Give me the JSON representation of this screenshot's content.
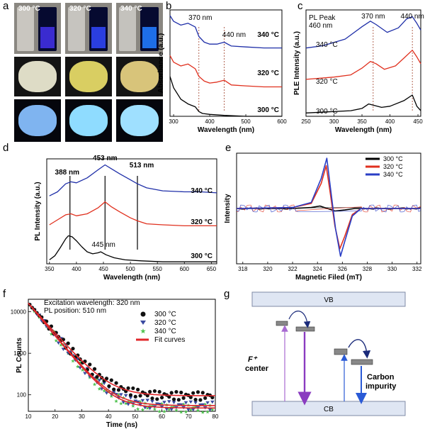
{
  "panel_labels": [
    "a",
    "b",
    "c",
    "d",
    "e",
    "f",
    "g"
  ],
  "photos": {
    "columns": [
      {
        "temp": "300 °C",
        "vial_top": "#c9c6c0",
        "vial_glow": "#3a2bd0",
        "powder_day": "#dedcc6",
        "powder_uv": "#7fb4f0"
      },
      {
        "temp": "320 °C",
        "vial_top": "#c6c4bf",
        "vial_glow": "#2a3ee0",
        "powder_day": "#d9ce62",
        "powder_uv": "#8fdcff"
      },
      {
        "temp": "340 °C",
        "vial_top": "#c4c2bd",
        "vial_glow": "#1e6ee8",
        "powder_day": "#d8c47a",
        "powder_uv": "#9fe0ff"
      }
    ]
  },
  "chart_data": [
    {
      "id": "b",
      "type": "line",
      "xlabel": "Wavelength (nm)",
      "ylabel": "Absorbance (a.u.)",
      "xlim": [
        290,
        600
      ],
      "xticks": [
        300,
        400,
        500,
        600
      ],
      "annotations": [
        "370 nm",
        "440 nm"
      ],
      "marker_x": [
        370,
        440
      ],
      "series": [
        {
          "name": "340 °C",
          "color": "#1f2fa8",
          "x": [
            290,
            300,
            320,
            340,
            360,
            370,
            385,
            400,
            420,
            440,
            460,
            500,
            550,
            600
          ],
          "y": [
            1.06,
            1.0,
            0.96,
            0.98,
            0.94,
            0.84,
            0.78,
            0.76,
            0.76,
            0.78,
            0.74,
            0.73,
            0.72,
            0.72
          ]
        },
        {
          "name": "320 °C",
          "color": "#e0301e",
          "x": [
            290,
            300,
            320,
            340,
            360,
            370,
            385,
            400,
            420,
            440,
            460,
            500,
            550,
            600
          ],
          "y": [
            0.64,
            0.57,
            0.53,
            0.55,
            0.5,
            0.42,
            0.37,
            0.35,
            0.36,
            0.38,
            0.33,
            0.32,
            0.31,
            0.31
          ]
        },
        {
          "name": "300 °C",
          "color": "#000000",
          "x": [
            290,
            300,
            320,
            340,
            360,
            370,
            380,
            400,
            440,
            500,
            550,
            600
          ],
          "y": [
            0.42,
            0.3,
            0.18,
            0.13,
            0.1,
            0.05,
            0.03,
            0.02,
            0.01,
            0.0,
            0.0,
            0.0
          ]
        }
      ]
    },
    {
      "id": "c",
      "type": "line",
      "xlabel": "Wavelength (nm)",
      "ylabel": "PLE Intensity (a.u.)",
      "xlim": [
        250,
        455
      ],
      "xticks": [
        250,
        300,
        350,
        400,
        450
      ],
      "annotations": [
        "370 nm",
        "440 nm"
      ],
      "marker_x": [
        370,
        440
      ],
      "note_line1": "PL Peak",
      "note_line2": "460 nm",
      "series": [
        {
          "name": "340 °C",
          "color": "#1f2fa8",
          "x": [
            250,
            280,
            320,
            350,
            365,
            375,
            395,
            415,
            430,
            440,
            448,
            455
          ],
          "y": [
            0.58,
            0.6,
            0.66,
            0.77,
            0.82,
            0.79,
            0.72,
            0.76,
            0.84,
            0.86,
            0.8,
            0.74
          ]
        },
        {
          "name": "320 °C",
          "color": "#e0301e",
          "x": [
            250,
            300,
            330,
            350,
            365,
            375,
            390,
            410,
            425,
            440,
            448,
            455
          ],
          "y": [
            0.3,
            0.32,
            0.34,
            0.4,
            0.46,
            0.44,
            0.39,
            0.42,
            0.49,
            0.56,
            0.5,
            0.44
          ]
        },
        {
          "name": "300 °C",
          "color": "#000000",
          "x": [
            250,
            290,
            330,
            350,
            362,
            370,
            385,
            400,
            425,
            440,
            448,
            455
          ],
          "y": [
            0.0,
            0.01,
            0.02,
            0.04,
            0.08,
            0.07,
            0.05,
            0.06,
            0.11,
            0.16,
            0.06,
            0.02
          ]
        }
      ]
    },
    {
      "id": "d",
      "type": "line",
      "xlabel": "Wavelength (nm)",
      "ylabel": "PL Intensity (a.u.)",
      "xlim": [
        345,
        660
      ],
      "xticks": [
        350,
        400,
        450,
        500,
        550,
        600,
        650
      ],
      "annotations": [
        "388 nm",
        "453 nm",
        "513 nm",
        "445 nm"
      ],
      "marker_x": [
        388,
        453,
        513
      ],
      "series": [
        {
          "name": "340 °C",
          "color": "#1f2fa8",
          "x": [
            350,
            365,
            380,
            390,
            400,
            420,
            440,
            453,
            465,
            480,
            500,
            513,
            530,
            560,
            600,
            630,
            660
          ],
          "y": [
            0.66,
            0.7,
            0.78,
            0.8,
            0.79,
            0.84,
            0.92,
            0.97,
            0.93,
            0.88,
            0.82,
            0.78,
            0.74,
            0.71,
            0.7,
            0.7,
            0.69
          ]
        },
        {
          "name": "320 °C",
          "color": "#e0301e",
          "x": [
            350,
            365,
            380,
            390,
            400,
            420,
            440,
            453,
            465,
            480,
            500,
            513,
            530,
            560,
            600,
            660
          ],
          "y": [
            0.37,
            0.42,
            0.47,
            0.48,
            0.46,
            0.48,
            0.54,
            0.6,
            0.55,
            0.5,
            0.44,
            0.41,
            0.38,
            0.37,
            0.36,
            0.36
          ]
        },
        {
          "name": "300 °C",
          "color": "#000000",
          "x": [
            350,
            360,
            370,
            380,
            385,
            392,
            400,
            410,
            420,
            430,
            440,
            445,
            455,
            470,
            490,
            520,
            560,
            600,
            660
          ],
          "y": [
            0.02,
            0.06,
            0.14,
            0.23,
            0.26,
            0.25,
            0.21,
            0.15,
            0.1,
            0.08,
            0.09,
            0.1,
            0.07,
            0.04,
            0.02,
            0.01,
            0.0,
            0.0,
            0.0
          ]
        }
      ]
    },
    {
      "id": "e",
      "type": "line",
      "xlabel": "Magnetic Filed (mT)",
      "ylabel": "Intensity",
      "xlim": [
        317.5,
        332.3
      ],
      "xticks": [
        318,
        320,
        322,
        324,
        326,
        328,
        330,
        332
      ],
      "legend": "top-right",
      "series": [
        {
          "name": "300 °C",
          "color": "#000000",
          "x": [
            317.5,
            322,
            323.5,
            324.2,
            324.8,
            325.4,
            326.2,
            327,
            332.3
          ],
          "y": [
            0.0,
            0.0,
            0.02,
            0.05,
            0.0,
            -0.05,
            -0.03,
            0.0,
            0.0
          ]
        },
        {
          "name": "320 °C",
          "color": "#e0301e",
          "x": [
            317.5,
            322,
            323.5,
            324.3,
            324.7,
            325.0,
            325.4,
            325.8,
            326.2,
            326.8,
            327.5,
            332.3
          ],
          "y": [
            0.0,
            0.02,
            0.1,
            0.5,
            0.85,
            0.35,
            -0.35,
            -0.8,
            -0.55,
            -0.12,
            0.0,
            0.0
          ]
        },
        {
          "name": "340 °C",
          "color": "#2a3ec6",
          "x": [
            317.5,
            322,
            323.5,
            324.3,
            324.75,
            325.05,
            325.45,
            325.85,
            326.2,
            326.8,
            327.5,
            332.3
          ],
          "y": [
            0.0,
            0.02,
            0.12,
            0.6,
            1.0,
            0.4,
            -0.4,
            -0.95,
            -0.65,
            -0.15,
            0.0,
            0.0
          ]
        }
      ]
    },
    {
      "id": "f",
      "type": "scatter",
      "xlabel": "Time (ns)",
      "ylabel": "PL Counts",
      "xlim": [
        10,
        80
      ],
      "ylog": true,
      "ylim": [
        40,
        20000
      ],
      "xticks": [
        10,
        20,
        30,
        40,
        50,
        60,
        70,
        80
      ],
      "yticks": [
        100,
        1000,
        10000
      ],
      "ytick_labels": [
        "100",
        "1000",
        "10000"
      ],
      "note_line1": "Excitation wavelength: 320 nm",
      "note_line2": "PL position: 510 nm",
      "legend": "top-right",
      "series": [
        {
          "name": "300 °C",
          "color": "#111111",
          "marker": "circle",
          "floor": 95,
          "tau": 6.0,
          "amp": 16000
        },
        {
          "name": "320 °C",
          "color": "#3a4aa0",
          "marker": "triangle-down",
          "floor": 55,
          "tau": 5.6,
          "amp": 16000
        },
        {
          "name": "340 °C",
          "color": "#4ec24e",
          "marker": "star",
          "floor": 48,
          "tau": 5.5,
          "amp": 16000
        },
        {
          "name": "Fit curves",
          "color": "#e0262a",
          "marker": "line"
        }
      ]
    }
  ],
  "diagram_g": {
    "vb_label": "VB",
    "cb_label": "CB",
    "label_f_line1": "F⁺",
    "label_f_line2": "center",
    "label_c_line1": "Carbon",
    "label_c_line2": "impurity"
  }
}
